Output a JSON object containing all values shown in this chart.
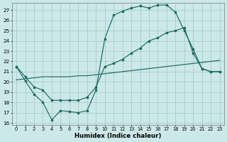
{
  "xlabel": "Humidex (Indice chaleur)",
  "bg_color": "#cce8e8",
  "grid_color": "#aacccc",
  "line_color": "#1a6b5e",
  "xlim": [
    -0.5,
    23.5
  ],
  "ylim": [
    15.8,
    27.7
  ],
  "yticks": [
    16,
    17,
    18,
    19,
    20,
    21,
    22,
    23,
    24,
    25,
    26,
    27
  ],
  "xticks": [
    0,
    1,
    2,
    3,
    4,
    5,
    6,
    7,
    8,
    9,
    10,
    11,
    12,
    13,
    14,
    15,
    16,
    17,
    18,
    19,
    20,
    21,
    22,
    23
  ],
  "line1_x": [
    0,
    1,
    2,
    3,
    4,
    5,
    6,
    7,
    8,
    9,
    10,
    11,
    12,
    13,
    14,
    15,
    16,
    17,
    18,
    19,
    20,
    21,
    22,
    23
  ],
  "line1_y": [
    21.5,
    20.1,
    18.8,
    18.0,
    16.3,
    17.2,
    17.1,
    17.0,
    17.2,
    19.2,
    24.2,
    26.5,
    26.9,
    27.2,
    27.4,
    27.2,
    27.5,
    27.5,
    26.8,
    25.0,
    23.2,
    21.3,
    21.0,
    21.0
  ],
  "line2_x": [
    0,
    1,
    2,
    3,
    4,
    5,
    6,
    7,
    8,
    9,
    10,
    11,
    12,
    13,
    14,
    15,
    16,
    17,
    18,
    19,
    20,
    21,
    22,
    23
  ],
  "line2_y": [
    21.5,
    20.5,
    19.5,
    19.2,
    18.2,
    18.2,
    18.2,
    18.2,
    18.5,
    19.5,
    21.5,
    21.8,
    22.2,
    22.8,
    23.3,
    24.0,
    24.3,
    24.8,
    25.0,
    25.3,
    22.8,
    21.3,
    21.0,
    21.0
  ],
  "line3_x": [
    0,
    1,
    2,
    3,
    4,
    5,
    6,
    7,
    8,
    9,
    10,
    11,
    12,
    13,
    14,
    15,
    16,
    17,
    18,
    19,
    20,
    21,
    22,
    23
  ],
  "line3_y": [
    20.2,
    20.3,
    20.4,
    20.5,
    20.5,
    20.5,
    20.5,
    20.6,
    20.6,
    20.7,
    20.8,
    20.9,
    21.0,
    21.1,
    21.2,
    21.3,
    21.4,
    21.5,
    21.6,
    21.7,
    21.8,
    21.9,
    22.0,
    22.1
  ]
}
